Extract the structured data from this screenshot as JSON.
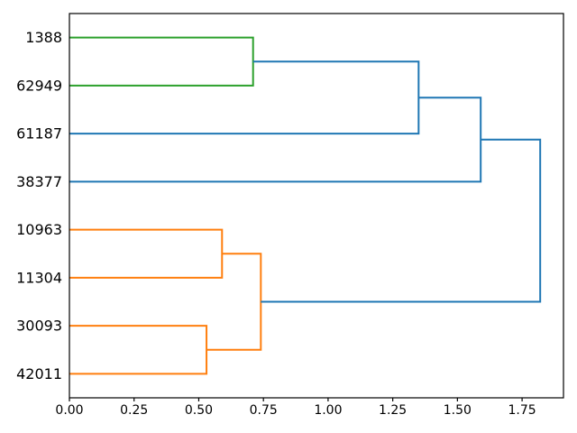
{
  "figure": {
    "background": "#ffffff",
    "title": ""
  },
  "chart_data": {
    "type": "dendrogram",
    "orientation": "right",
    "title": "",
    "xlabel": "",
    "ylabel": "",
    "grid": false,
    "legend": null,
    "leaves": [
      "1388",
      "62949",
      "61187",
      "38377",
      "10963",
      "11304",
      "30093",
      "42011"
    ],
    "merges": [
      {
        "id": "m0",
        "children": [
          "L0",
          "L1"
        ],
        "distance": 0.71,
        "color": "green"
      },
      {
        "id": "m1",
        "children": [
          "L4",
          "L5"
        ],
        "distance": 0.59,
        "color": "orange"
      },
      {
        "id": "m2",
        "children": [
          "L6",
          "L7"
        ],
        "distance": 0.53,
        "color": "orange"
      },
      {
        "id": "m3",
        "children": [
          "m1",
          "m2"
        ],
        "distance": 0.74,
        "color": "orange"
      },
      {
        "id": "m4",
        "children": [
          "m0",
          "L2"
        ],
        "distance": 1.35,
        "color": "blue"
      },
      {
        "id": "m5",
        "children": [
          "m4",
          "L3"
        ],
        "distance": 1.59,
        "color": "blue"
      },
      {
        "id": "m6",
        "children": [
          "m5",
          "m3"
        ],
        "distance": 1.82,
        "color": "blue"
      }
    ],
    "colors": {
      "blue": "#1f77b4",
      "green": "#2ca02c",
      "orange": "#ff7f0e",
      "axes": "#000000"
    },
    "x_ticks": {
      "values": [
        0,
        0.25,
        0.5,
        0.75,
        1.0,
        1.25,
        1.5,
        1.75
      ],
      "labels": [
        "0.00",
        "0.25",
        "0.50",
        "0.75",
        "1.00",
        "1.25",
        "1.50",
        "1.75"
      ]
    },
    "xlim": [
      0,
      1.91
    ]
  }
}
